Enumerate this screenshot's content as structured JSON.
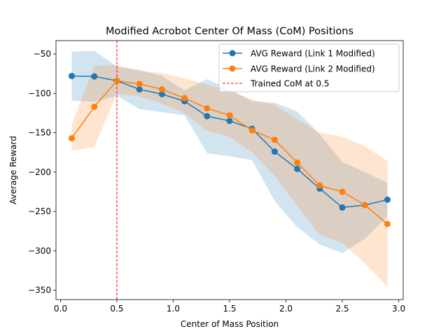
{
  "chart_data": {
    "type": "line",
    "title": "Modified Acrobot Center Of Mass (CoM) Positions",
    "xlabel": "Center of Mass Position",
    "ylabel": "Average Reward",
    "xlim": [
      -0.04,
      3.04
    ],
    "ylim": [
      -362,
      -33
    ],
    "xticks": [
      0.0,
      0.5,
      1.0,
      1.5,
      2.0,
      2.5,
      3.0
    ],
    "xtick_labels": [
      "0.0",
      "0.5",
      "1.0",
      "1.5",
      "2.0",
      "2.5",
      "3.0"
    ],
    "yticks": [
      -50,
      -100,
      -150,
      -200,
      -250,
      -300,
      -350
    ],
    "ytick_labels": [
      "−50",
      "−100",
      "−150",
      "−200",
      "−250",
      "−300",
      "−350"
    ],
    "grid": false,
    "legend_position": "top-right",
    "x": [
      0.1,
      0.3,
      0.5,
      0.7,
      0.9,
      1.1,
      1.3,
      1.5,
      1.7,
      1.9,
      2.1,
      2.3,
      2.5,
      2.7,
      2.9
    ],
    "series": [
      {
        "name": "AVG Reward (Link 1 Modified)",
        "color": "#1f77b4",
        "values": [
          -78,
          -78.5,
          -84,
          -95,
          -101,
          -110,
          -129,
          -135,
          -145,
          -174,
          -196,
          -221,
          -245,
          -242,
          -235
        ],
        "band_upper": [
          -47,
          -46,
          -66,
          -70,
          -78,
          -96,
          -82,
          -95,
          -110,
          -112,
          -123,
          -152,
          -187,
          -200,
          -214
        ],
        "band_lower": [
          -109,
          -111,
          -103,
          -120,
          -124,
          -128,
          -176,
          -180,
          -185,
          -237,
          -270,
          -292,
          -303,
          -285,
          -256
        ]
      },
      {
        "name": "AVG Reward (Link 2 Modified)",
        "color": "#ff7f0e",
        "values": [
          -157,
          -117,
          -84,
          -88,
          -95,
          -106,
          -119,
          -128,
          -147,
          -159,
          -188,
          -217,
          -225,
          -242,
          -266
        ],
        "band_upper": [
          -140,
          -65,
          -64,
          -72,
          -74,
          -81,
          -89,
          -97,
          -108,
          -115,
          -133,
          -150,
          -155,
          -167,
          -186
        ],
        "band_lower": [
          -173,
          -168,
          -101,
          -104,
          -113,
          -125,
          -148,
          -155,
          -175,
          -205,
          -243,
          -280,
          -290,
          -316,
          -346
        ]
      }
    ],
    "reference_line": {
      "name": "Trained CoM at 0.5",
      "x": 0.5,
      "color": "#ff0000"
    }
  }
}
